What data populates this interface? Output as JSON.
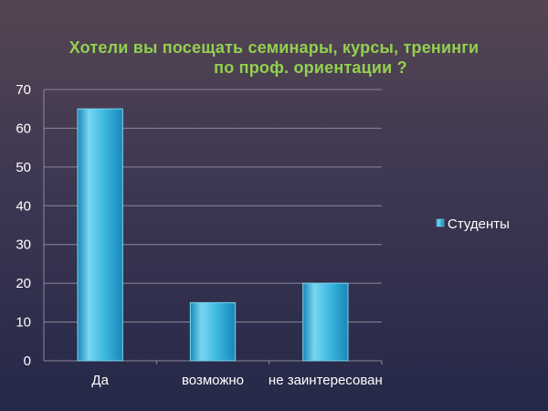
{
  "chart_data": {
    "type": "bar",
    "title": [
      "Хотели вы посещать семинары, курсы, тренинги",
      "по проф. ориентации ?"
    ],
    "categories": [
      "Да",
      "возможно",
      "не заинтересован"
    ],
    "series": [
      {
        "name": "Студенты",
        "values": [
          65,
          15,
          20
        ]
      }
    ],
    "yticks": [
      0,
      10,
      20,
      30,
      40,
      50,
      60,
      70
    ],
    "ylim": [
      0,
      70
    ],
    "grid": true,
    "legend": "right",
    "colors": {
      "bar": "#3ab8e0",
      "bar_light": "#7ad6f0",
      "bar_dark": "#1a86b8",
      "title": "#92d050",
      "grid": "#8a8a96",
      "text": "#ffffff"
    }
  }
}
